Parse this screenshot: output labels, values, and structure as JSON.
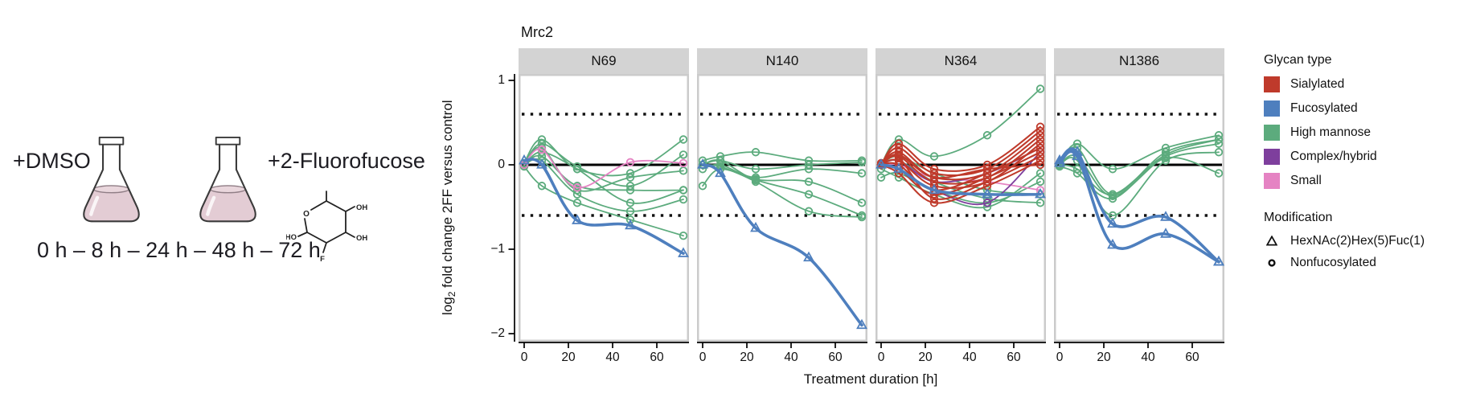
{
  "illustration": {
    "flask1_label": "+DMSO",
    "flask2_label": "+2-Fluorofucose",
    "timeline": "0 h – 8 h – 24 h – 48 h – 72 h",
    "liquid_color": "#e3ccd4",
    "molecule": {
      "ring_oxygen": "O",
      "oh_top": "OH",
      "oh_right": "OH",
      "ho_left": "HO",
      "fluorine": "F"
    }
  },
  "chart_data": {
    "type": "line",
    "title": "Mrc2",
    "xlabel": "Treatment duration [h]",
    "ylabel": "log2 fold change 2FF versus control",
    "ylabel_parts": {
      "prefix": "log",
      "sub": "2",
      "rest": " fold change 2FF versus control"
    },
    "x": [
      0,
      8,
      24,
      48,
      72
    ],
    "xlim": [
      0,
      72
    ],
    "ylim": [
      -2,
      1
    ],
    "xticks": [
      0,
      20,
      40,
      60
    ],
    "xtick_labels": [
      "0",
      "20",
      "40",
      "60"
    ],
    "yticks": [
      1,
      0,
      -1,
      -2
    ],
    "ytick_labels": [
      "1",
      "0",
      "−1",
      "−2"
    ],
    "grid": false,
    "legend_position": "right",
    "ref_lines": {
      "zero": 0,
      "dotted": [
        0.6,
        -0.6
      ]
    },
    "glycan_colors": {
      "Sialylated": "#bf3a2b",
      "Fucosylated": "#4e7fbe",
      "High mannose": "#5cab7d",
      "Complex/hybrid": "#7e3f9d",
      "Small": "#e583c3"
    },
    "panels": [
      {
        "name": "N69",
        "series": [
          {
            "glycan": "High mannose",
            "marker": "circle",
            "values": [
              0.02,
              0.3,
              -0.05,
              -0.1,
              0.3
            ]
          },
          {
            "glycan": "High mannose",
            "marker": "circle",
            "values": [
              0.0,
              0.25,
              -0.02,
              -0.25,
              0.12
            ]
          },
          {
            "glycan": "High mannose",
            "marker": "circle",
            "values": [
              0.0,
              0.2,
              -0.3,
              -0.15,
              -0.07
            ]
          },
          {
            "glycan": "High mannose",
            "marker": "circle",
            "values": [
              0.0,
              0.1,
              -0.25,
              -0.3,
              -0.3
            ]
          },
          {
            "glycan": "High mannose",
            "marker": "circle",
            "values": [
              0.0,
              0.05,
              -0.35,
              -0.55,
              -0.41
            ]
          },
          {
            "glycan": "High mannose",
            "marker": "circle",
            "values": [
              -0.02,
              -0.25,
              -0.45,
              -0.65,
              -0.84
            ]
          },
          {
            "glycan": "High mannose",
            "marker": "circle",
            "values": [
              0.0,
              0.15,
              -0.05,
              -0.45,
              -0.3
            ]
          },
          {
            "glycan": "Small",
            "marker": "circle",
            "values": [
              0.0,
              0.18,
              -0.27,
              0.03,
              0.02
            ]
          },
          {
            "glycan": "Fucosylated",
            "marker": "triangle",
            "values": [
              0.05,
              0.0,
              -0.66,
              -0.72,
              -1.05
            ]
          }
        ]
      },
      {
        "name": "N140",
        "series": [
          {
            "glycan": "High mannose",
            "marker": "circle",
            "values": [
              0.05,
              0.1,
              0.15,
              0.05,
              0.05
            ]
          },
          {
            "glycan": "High mannose",
            "marker": "circle",
            "values": [
              0.0,
              0.05,
              -0.05,
              0.0,
              0.03
            ]
          },
          {
            "glycan": "High mannose",
            "marker": "circle",
            "values": [
              -0.05,
              0.0,
              -0.15,
              -0.05,
              -0.1
            ]
          },
          {
            "glycan": "High mannose",
            "marker": "circle",
            "values": [
              0.0,
              0.05,
              -0.17,
              -0.2,
              -0.45
            ]
          },
          {
            "glycan": "High mannose",
            "marker": "circle",
            "values": [
              -0.25,
              -0.05,
              -0.2,
              -0.55,
              -0.62
            ]
          },
          {
            "glycan": "High mannose",
            "marker": "circle",
            "values": [
              0.0,
              -0.02,
              -0.18,
              -0.35,
              -0.6
            ]
          },
          {
            "glycan": "Fucosylated",
            "marker": "triangle",
            "values": [
              0.0,
              -0.1,
              -0.75,
              -1.1,
              -1.9
            ]
          }
        ]
      },
      {
        "name": "N364",
        "series": [
          {
            "glycan": "High mannose",
            "marker": "circle",
            "values": [
              0.0,
              0.3,
              0.1,
              0.35,
              0.9
            ]
          },
          {
            "glycan": "High mannose",
            "marker": "circle",
            "values": [
              -0.15,
              -0.1,
              -0.3,
              -0.45,
              -0.2
            ]
          },
          {
            "glycan": "High mannose",
            "marker": "circle",
            "values": [
              0.0,
              0.05,
              -0.2,
              -0.4,
              -0.45
            ]
          },
          {
            "glycan": "High mannose",
            "marker": "circle",
            "values": [
              -0.05,
              -0.15,
              -0.35,
              -0.5,
              -0.1
            ]
          },
          {
            "glycan": "High mannose",
            "marker": "circle",
            "values": [
              0.0,
              0.1,
              -0.1,
              -0.3,
              -0.35
            ]
          },
          {
            "glycan": "Small",
            "marker": "circle",
            "values": [
              0.0,
              0.0,
              -0.15,
              -0.2,
              -0.3
            ]
          },
          {
            "glycan": "Complex/hybrid",
            "marker": "circle",
            "values": [
              0.0,
              0.05,
              -0.2,
              -0.1,
              0.2
            ]
          },
          {
            "glycan": "Complex/hybrid",
            "marker": "circle",
            "values": [
              0.0,
              -0.05,
              -0.3,
              -0.45,
              0.15
            ]
          },
          {
            "glycan": "Sialylated",
            "marker": "circle",
            "values": [
              0.0,
              0.25,
              -0.05,
              0.0,
              0.45
            ]
          },
          {
            "glycan": "Sialylated",
            "marker": "circle",
            "values": [
              0.0,
              0.2,
              -0.1,
              -0.05,
              0.4
            ]
          },
          {
            "glycan": "Sialylated",
            "marker": "circle",
            "values": [
              0.0,
              0.15,
              -0.15,
              -0.1,
              0.35
            ]
          },
          {
            "glycan": "Sialylated",
            "marker": "circle",
            "values": [
              0.0,
              0.1,
              -0.2,
              -0.15,
              0.3
            ]
          },
          {
            "glycan": "Sialylated",
            "marker": "circle",
            "values": [
              0.0,
              0.05,
              -0.25,
              -0.2,
              0.25
            ]
          },
          {
            "glycan": "Sialylated",
            "marker": "circle",
            "values": [
              0.0,
              0.0,
              -0.3,
              -0.1,
              0.2
            ]
          },
          {
            "glycan": "Sialylated",
            "marker": "circle",
            "values": [
              0.0,
              -0.05,
              -0.35,
              -0.15,
              0.15
            ]
          },
          {
            "glycan": "Sialylated",
            "marker": "circle",
            "values": [
              0.02,
              0.08,
              -0.4,
              -0.2,
              0.1
            ]
          },
          {
            "glycan": "Sialylated",
            "marker": "circle",
            "values": [
              0.0,
              -0.1,
              -0.45,
              -0.25,
              0.05
            ]
          },
          {
            "glycan": "Sialylated",
            "marker": "circle",
            "values": [
              0.0,
              0.12,
              -0.15,
              -0.05,
              0.0
            ]
          },
          {
            "glycan": "Fucosylated",
            "marker": "triangle",
            "values": [
              0.0,
              -0.05,
              -0.3,
              -0.35,
              -0.35
            ]
          }
        ]
      },
      {
        "name": "N1386",
        "series": [
          {
            "glycan": "High mannose",
            "marker": "circle",
            "values": [
              0.0,
              0.25,
              -0.05,
              0.2,
              0.35
            ]
          },
          {
            "glycan": "High mannose",
            "marker": "circle",
            "values": [
              0.0,
              0.2,
              -0.35,
              0.15,
              0.3
            ]
          },
          {
            "glycan": "High mannose",
            "marker": "circle",
            "values": [
              0.0,
              0.1,
              -0.37,
              0.1,
              0.25
            ]
          },
          {
            "glycan": "High mannose",
            "marker": "circle",
            "values": [
              0.0,
              0.05,
              -0.6,
              0.05,
              0.15
            ]
          },
          {
            "glycan": "High mannose",
            "marker": "circle",
            "values": [
              0.0,
              -0.05,
              -0.35,
              0.12,
              0.3
            ]
          },
          {
            "glycan": "High mannose",
            "marker": "circle",
            "values": [
              -0.02,
              -0.1,
              -0.4,
              0.08,
              -0.1
            ]
          },
          {
            "glycan": "Fucosylated",
            "marker": "triangle",
            "values": [
              0.05,
              0.15,
              -0.7,
              -0.62,
              -1.15
            ]
          },
          {
            "glycan": "Fucosylated",
            "marker": "triangle",
            "values": [
              0.02,
              0.1,
              -0.95,
              -0.82,
              -1.15
            ]
          }
        ]
      }
    ]
  },
  "legend": {
    "glycan_title": "Glycan type",
    "glycan_items": [
      {
        "label": "Sialylated",
        "color": "#bf3a2b"
      },
      {
        "label": "Fucosylated",
        "color": "#4e7fbe"
      },
      {
        "label": "High mannose",
        "color": "#5cab7d"
      },
      {
        "label": "Complex/hybrid",
        "color": "#7e3f9d"
      },
      {
        "label": "Small",
        "color": "#e583c3"
      }
    ],
    "modification_title": "Modification",
    "modification_items": [
      {
        "label": "HexNAc(2)Hex(5)Fuc(1)",
        "marker": "triangle"
      },
      {
        "label": "Nonfucosylated",
        "marker": "circle"
      }
    ]
  }
}
